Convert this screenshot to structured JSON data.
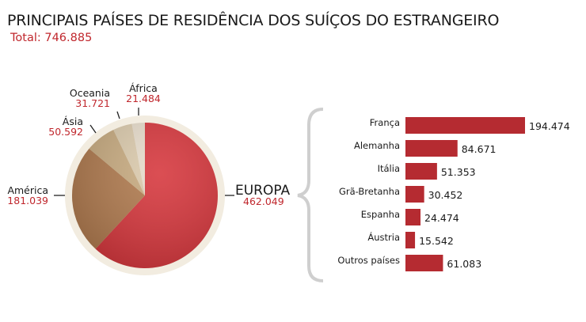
{
  "chart_data": [
    {
      "type": "pie",
      "title": "PRINCIPAIS PAÍSES DE RESIDÊNCIA DOS SUÍÇOS DO ESTRANGEIRO",
      "subtitle": "Total: 746.885",
      "slices": [
        {
          "label": "EUROPA",
          "value": 462049,
          "display": "462.049",
          "color": "#d6363c"
        },
        {
          "label": "América",
          "value": 181039,
          "display": "181.039",
          "color": "#b07a4e"
        },
        {
          "label": "Ásia",
          "value": 50592,
          "display": "50.592",
          "color": "#c8ab80"
        },
        {
          "label": "Oceania",
          "value": 31721,
          "display": "31.721",
          "color": "#dccbad"
        },
        {
          "label": "África",
          "value": 21484,
          "display": "21.484",
          "color": "#e8ddcc"
        }
      ]
    },
    {
      "type": "bar",
      "orientation": "horizontal",
      "categories": [
        "França",
        "Alemanha",
        "Itália",
        "Grã-Bretanha",
        "Espanha",
        "Áustria",
        "Outros países"
      ],
      "values": [
        194474,
        84671,
        51353,
        30452,
        24474,
        15542,
        61083
      ],
      "value_labels": [
        "194.474",
        "84.671",
        "51.353",
        "30.452",
        "24.474",
        "15.542",
        "61.083"
      ],
      "color": "#b52b31"
    }
  ]
}
